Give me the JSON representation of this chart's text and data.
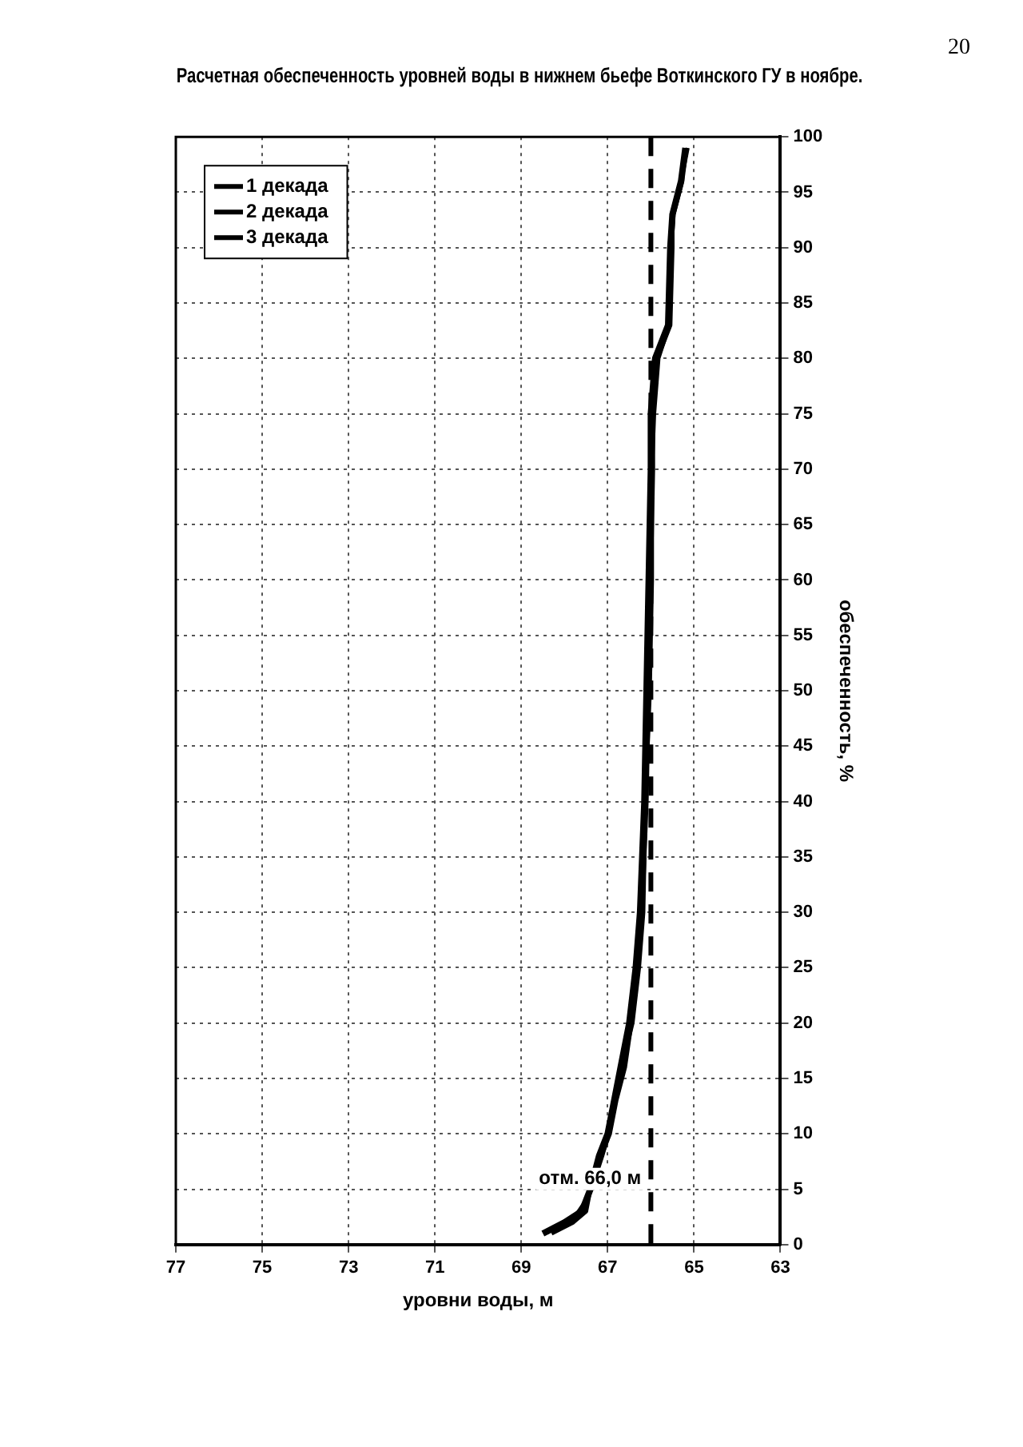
{
  "chart_data": {
    "type": "line",
    "title": "Расчетная обеспеченность уровней воды в нижнем бьефе Воткинского ГУ в ноябре.",
    "xlabel": "уровни воды, м",
    "ylabel": "обеспеченность, %",
    "series": [
      {
        "name": "1 декада",
        "color": "#000000",
        "x": [
          68.5,
          68.0,
          67.6,
          67.4,
          67.2,
          67.0,
          66.85,
          66.7,
          66.5,
          66.35,
          66.25,
          66.15,
          66.1,
          66.05,
          66.0,
          66.0,
          65.9,
          65.6,
          65.55,
          65.5,
          65.3,
          65.2
        ],
        "values": [
          1,
          2,
          3,
          5,
          8,
          10,
          13,
          16,
          20,
          25,
          30,
          40,
          50,
          60,
          70,
          75,
          80,
          83,
          90,
          93,
          96,
          99
        ]
      },
      {
        "name": "2 декада",
        "color": "#000000",
        "x": [
          68.3,
          67.8,
          67.5,
          67.4,
          67.15,
          66.95,
          66.8,
          66.6,
          66.45,
          66.3,
          66.2,
          66.1,
          66.05,
          66.0,
          65.95,
          65.95,
          65.85,
          65.55,
          65.5,
          65.5,
          65.3,
          65.15
        ],
        "values": [
          1,
          2,
          3,
          5,
          8,
          10,
          13,
          16,
          20,
          25,
          30,
          40,
          50,
          60,
          70,
          75,
          80,
          83,
          90,
          93,
          96,
          99
        ]
      },
      {
        "name": "3 декада",
        "color": "#000000",
        "x": [
          68.4,
          67.9,
          67.7,
          67.35,
          67.1,
          66.95,
          66.8,
          66.65,
          66.4,
          66.25,
          66.15,
          66.1,
          66.0,
          65.95,
          65.95,
          65.9,
          65.8,
          65.55,
          65.5,
          65.45,
          65.25,
          65.2
        ],
        "values": [
          1,
          2,
          3,
          5,
          8,
          10,
          13,
          16,
          20,
          25,
          30,
          40,
          50,
          60,
          70,
          75,
          80,
          83,
          90,
          93,
          96,
          99
        ]
      }
    ],
    "xlim": [
      77,
      63
    ],
    "xticks": [
      77,
      75,
      73,
      71,
      69,
      67,
      65,
      63
    ],
    "ylim": [
      0,
      100
    ],
    "yticks": [
      0,
      5,
      10,
      15,
      20,
      25,
      30,
      35,
      40,
      45,
      50,
      55,
      60,
      65,
      70,
      75,
      80,
      85,
      90,
      95,
      100
    ],
    "grid": true,
    "legend": "top left",
    "ref_lines": [
      {
        "axis": "x",
        "value": 66,
        "label": "отм. 66,0 м",
        "line_style": "dashed",
        "color": "#000000"
      }
    ],
    "annotations": [
      "20"
    ]
  }
}
